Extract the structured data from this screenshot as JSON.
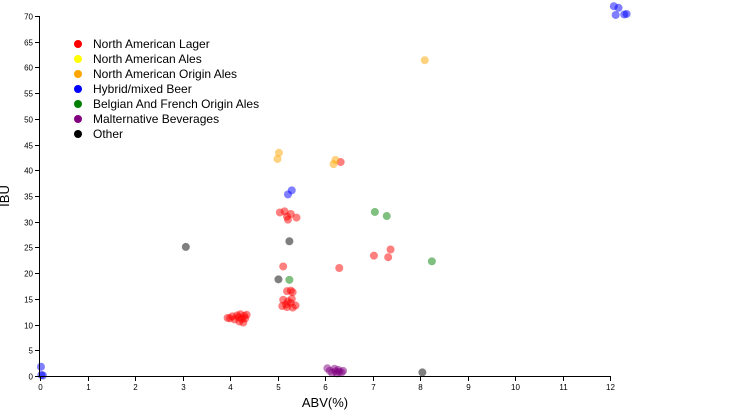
{
  "chart_data": {
    "type": "scatter",
    "title": "",
    "xlabel": "ABV(%)",
    "ylabel": "IBU",
    "xlim": [
      0,
      12
    ],
    "ylim": [
      0,
      70
    ],
    "x_ticks": [
      0,
      1,
      2,
      3,
      4,
      5,
      6,
      7,
      8,
      9,
      10,
      11,
      12
    ],
    "y_ticks": [
      0,
      5,
      10,
      15,
      20,
      25,
      30,
      35,
      40,
      45,
      50,
      55,
      60,
      65,
      70
    ],
    "grid": false,
    "legend_position": "top-left",
    "series": [
      {
        "name": "North American Lager",
        "color": "#ff0000",
        "points": [
          [
            3.95,
            11.3
          ],
          [
            4.0,
            11.2
          ],
          [
            4.05,
            11.6
          ],
          [
            4.1,
            11.0
          ],
          [
            4.15,
            11.8
          ],
          [
            4.18,
            11.4
          ],
          [
            4.2,
            10.6
          ],
          [
            4.22,
            12.0
          ],
          [
            4.25,
            11.1
          ],
          [
            4.28,
            10.4
          ],
          [
            4.3,
            11.7
          ],
          [
            4.32,
            11.2
          ],
          [
            4.35,
            11.9
          ],
          [
            5.05,
            31.8
          ],
          [
            5.15,
            32.0
          ],
          [
            5.2,
            31.0
          ],
          [
            5.22,
            30.4
          ],
          [
            5.28,
            31.5
          ],
          [
            5.4,
            30.8
          ],
          [
            5.12,
            21.3
          ],
          [
            5.2,
            16.5
          ],
          [
            5.28,
            16.6
          ],
          [
            5.32,
            16.3
          ],
          [
            5.12,
            14.8
          ],
          [
            5.22,
            14.5
          ],
          [
            5.3,
            15.0
          ],
          [
            5.1,
            13.6
          ],
          [
            5.2,
            13.4
          ],
          [
            5.28,
            14.2
          ],
          [
            5.32,
            13.3
          ],
          [
            5.38,
            13.7
          ],
          [
            5.18,
            13.9
          ],
          [
            6.33,
            41.6
          ],
          [
            6.3,
            21.0
          ],
          [
            7.03,
            23.4
          ],
          [
            7.33,
            23.1
          ],
          [
            7.38,
            24.6
          ]
        ]
      },
      {
        "name": "North American Ales",
        "color": "#ffff00",
        "points": []
      },
      {
        "name": "North American Origin Ales",
        "color": "#ffa500",
        "points": [
          [
            5.0,
            42.2
          ],
          [
            5.03,
            43.4
          ],
          [
            6.18,
            41.2
          ],
          [
            6.22,
            42.0
          ],
          [
            8.1,
            61.4
          ]
        ]
      },
      {
        "name": "Hybrid/mixed Beer",
        "color": "#0000ff",
        "points": [
          [
            5.22,
            35.3
          ],
          [
            5.3,
            36.1
          ],
          [
            12.08,
            71.9
          ],
          [
            12.12,
            70.2
          ],
          [
            12.18,
            71.6
          ],
          [
            12.3,
            70.3
          ],
          [
            12.35,
            70.4
          ],
          [
            0.02,
            1.8
          ],
          [
            0.03,
            0.2
          ],
          [
            0.06,
            0.1
          ]
        ]
      },
      {
        "name": "Belgian And French Origin Ales",
        "color": "#008000",
        "points": [
          [
            5.25,
            18.7
          ],
          [
            7.05,
            31.9
          ],
          [
            7.3,
            31.1
          ],
          [
            8.25,
            22.3
          ]
        ]
      },
      {
        "name": "Malternative Beverages",
        "color": "#800080",
        "points": [
          [
            6.05,
            1.5
          ],
          [
            6.1,
            1.0
          ],
          [
            6.15,
            0.6
          ],
          [
            6.2,
            1.4
          ],
          [
            6.22,
            0.9
          ],
          [
            6.25,
            0.5
          ],
          [
            6.28,
            1.2
          ],
          [
            6.3,
            0.8
          ],
          [
            6.35,
            0.7
          ],
          [
            6.38,
            1.0
          ]
        ]
      },
      {
        "name": "Other",
        "color": "#000000",
        "points": [
          [
            3.07,
            25.1
          ],
          [
            5.02,
            18.8
          ],
          [
            5.25,
            26.2
          ],
          [
            8.05,
            0.7
          ]
        ]
      }
    ]
  }
}
